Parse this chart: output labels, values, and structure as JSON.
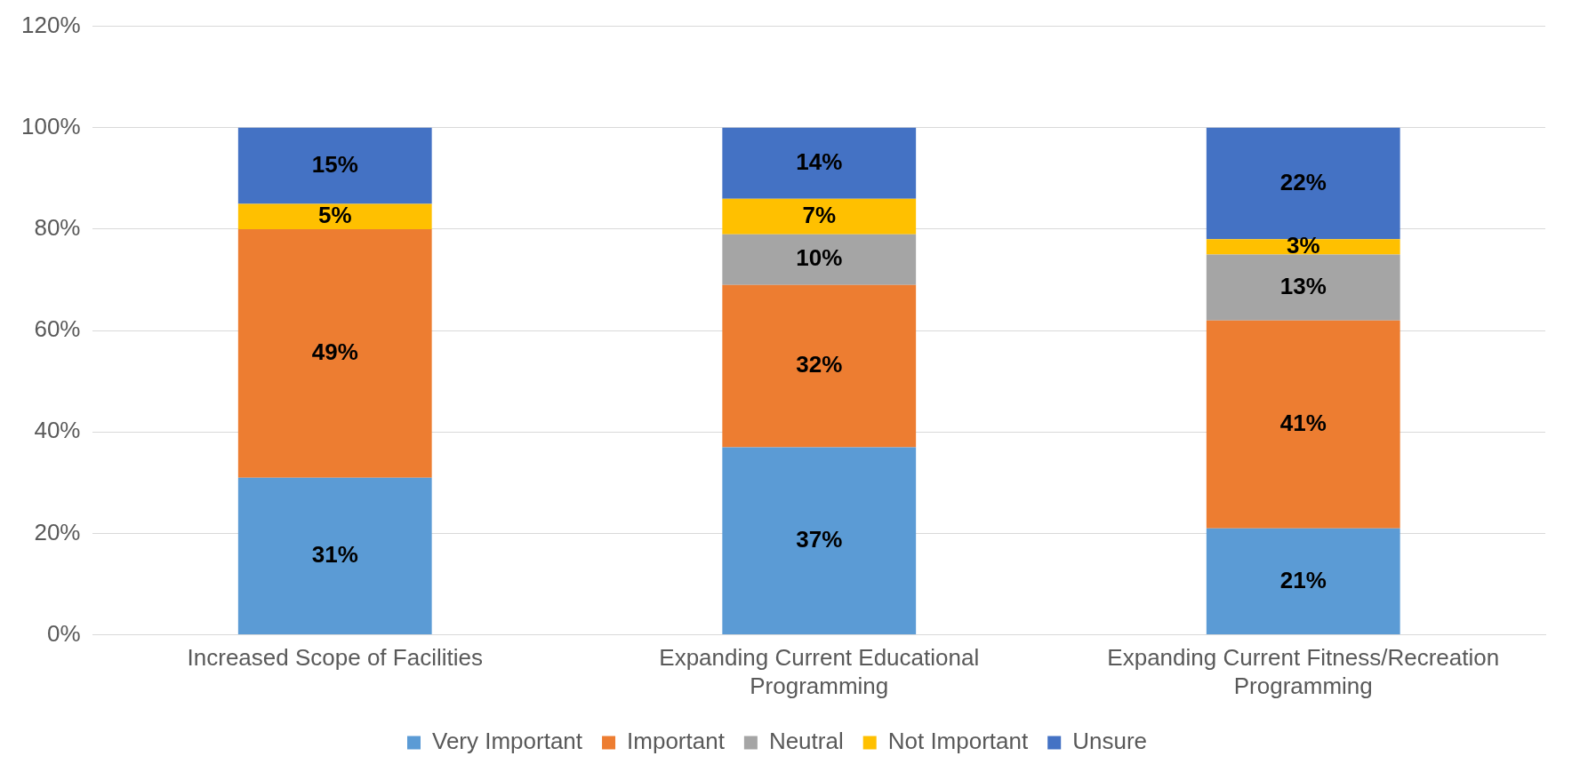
{
  "chart_data": {
    "type": "bar",
    "stacked": true,
    "categories": [
      "Increased Scope of Facilities",
      "Expanding Current Educational Programming",
      "Expanding Current Fitness/Recreation Programming"
    ],
    "series": [
      {
        "name": "Very Important",
        "color": "#5b9bd5",
        "values": [
          31,
          37,
          21
        ],
        "value_labels": [
          "31%",
          "37%",
          "21%"
        ]
      },
      {
        "name": "Important",
        "color": "#ed7d31",
        "values": [
          49,
          32,
          41
        ],
        "value_labels": [
          "49%",
          "32%",
          "41%"
        ]
      },
      {
        "name": "Neutral",
        "color": "#a5a5a5",
        "values": [
          0,
          10,
          13
        ],
        "value_labels": [
          null,
          "10%",
          "13%"
        ]
      },
      {
        "name": "Not Important",
        "color": "#ffc000",
        "values": [
          5,
          7,
          3
        ],
        "value_labels": [
          "5%",
          "7%",
          "3%"
        ]
      },
      {
        "name": "Unsure",
        "color": "#4472c4",
        "values": [
          15,
          14,
          22
        ],
        "value_labels": [
          "15%",
          "14%",
          "22%"
        ]
      }
    ],
    "ylim": [
      0,
      120
    ],
    "yticks": [
      {
        "value": 0,
        "label": "0%"
      },
      {
        "value": 20,
        "label": "20%"
      },
      {
        "value": 40,
        "label": "40%"
      },
      {
        "value": 60,
        "label": "60%"
      },
      {
        "value": 80,
        "label": "80%"
      },
      {
        "value": 100,
        "label": "100%"
      },
      {
        "value": 120,
        "label": "120%"
      }
    ],
    "grid": "y",
    "legend": "bottom"
  }
}
